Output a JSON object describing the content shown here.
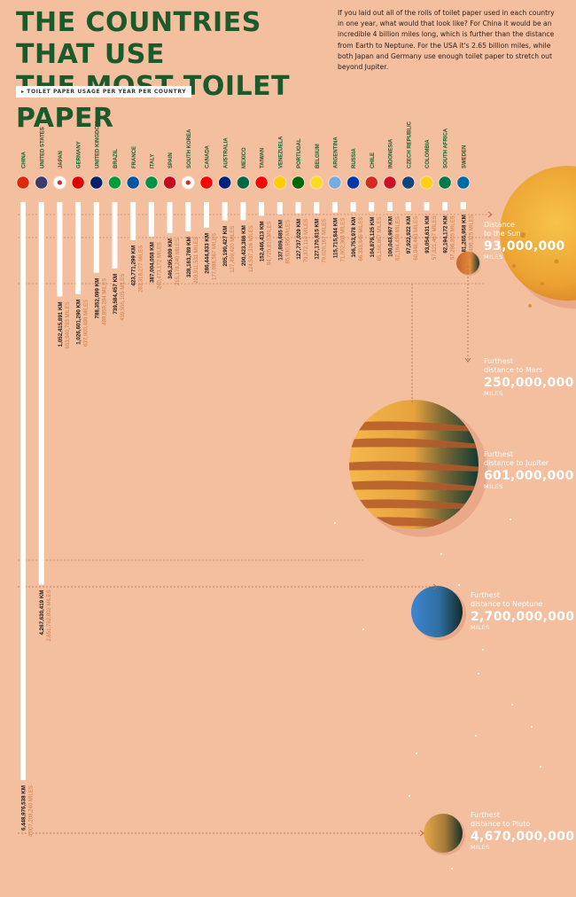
{
  "header": {
    "title_line1": "THE COUNTRIES THAT USE",
    "title_line2": "THE MOST TOILET PAPER",
    "intro": "If you laid out all of the rolls of toilet paper used in each country in one year, what would that look like? For China it would be an incredible 4 billion miles long, which is further than the distance from Earth to Neptune. For the USA it's 2.65 billion miles, while both Japan and Germany use enough toilet paper to stretch out beyond Jupiter.",
    "legend": "▸ TOILET PAPER USAGE PER YEAR PER COUNTRY"
  },
  "colors": {
    "background": "#f3bf9f",
    "title": "#1c5a2c",
    "km_text": "#1e1a18",
    "miles_text": "#d07a44",
    "bar": "#ffffff",
    "dotted": "#c9886a"
  },
  "chart_data": {
    "type": "bar",
    "orientation": "vertical-downward",
    "title": "Toilet paper usage per year per country",
    "unit_primary": "KM",
    "unit_secondary": "MILES",
    "ylim_miles": [
      0,
      4670000000
    ],
    "countries": [
      {
        "name": "CHINA",
        "km": "6,448,976,538 KM",
        "miles": "4,007,208,240 MILES",
        "miles_value": 4007208240,
        "flag": "china-flag-icon",
        "color": "#de2910"
      },
      {
        "name": "UNITED STATES",
        "km": "4,267,630,419 KM",
        "miles": "2,651,782,802 MILES",
        "miles_value": 2651782802,
        "flag": "usa-flag-icon",
        "color": "#3c3b6e"
      },
      {
        "name": "JAPAN",
        "km": "1,052,415,891 KM",
        "miles": "653,940,793 MILES",
        "miles_value": 653940793,
        "flag": "japan-flag-icon",
        "color": "#ffffff"
      },
      {
        "name": "GERMANY",
        "km": "1,026,601,290 KM",
        "miles": "637,900,486 MILES",
        "miles_value": 637900486,
        "flag": "germany-flag-icon",
        "color": "#dd0000"
      },
      {
        "name": "UNITED KINGDOM",
        "km": "788,352,099 KM",
        "miles": "489,859,284 MILES",
        "miles_value": 489859284,
        "flag": "uk-flag-icon",
        "color": "#012169"
      },
      {
        "name": "BRAZIL",
        "km": "739,584,457 KM",
        "miles": "459,555,105 MILES",
        "miles_value": 459555105,
        "flag": "brazil-flag-icon",
        "color": "#009c3b"
      },
      {
        "name": "FRANCE",
        "km": "423,771,299 KM",
        "miles": "263,318,277 MILES",
        "miles_value": 263318277,
        "flag": "france-flag-icon",
        "color": "#0055a4"
      },
      {
        "name": "ITALY",
        "km": "387,004,058 KM",
        "miles": "240,473,172 MILES",
        "miles_value": 240473172,
        "flag": "italy-flag-icon",
        "color": "#009246"
      },
      {
        "name": "SPAIN",
        "km": "346,295,809 KM",
        "miles": "215,178,240 MILES",
        "miles_value": 215178240,
        "flag": "spain-flag-icon",
        "color": "#c60b1e"
      },
      {
        "name": "SOUTH KOREA",
        "km": "328,163,789 KM",
        "miles": "203,911,531 MILES",
        "miles_value": 203911531,
        "flag": "south-korea-flag-icon",
        "color": "#ffffff"
      },
      {
        "name": "CANADA",
        "km": "286,444,833 KM",
        "miles": "177,988,567 MILES",
        "miles_value": 177988567,
        "flag": "canada-flag-icon",
        "color": "#ff0000"
      },
      {
        "name": "AUSTRALIA",
        "km": "205,190,427 KM",
        "miles": "127,499,420 MILES",
        "miles_value": 127499420,
        "flag": "australia-flag-icon",
        "color": "#00247d"
      },
      {
        "name": "MEXICO",
        "km": "200,423,386 KM",
        "miles": "124,537,316 MILES",
        "miles_value": 124537316,
        "flag": "mexico-flag-icon",
        "color": "#006847"
      },
      {
        "name": "TAIWAN",
        "km": "152,446,413 KM",
        "miles": "94,725,810 MILES",
        "miles_value": 94725810,
        "flag": "taiwan-flag-icon",
        "color": "#fe0000"
      },
      {
        "name": "VENEZUELA",
        "km": "137,809,685 KM",
        "miles": "85,630,956 MILES",
        "miles_value": 85630956,
        "flag": "venezuela-flag-icon",
        "color": "#ffcc00"
      },
      {
        "name": "PORTUGAL",
        "km": "127,737,029 KM",
        "miles": "79,372,110 MILES",
        "miles_value": 79372110,
        "flag": "portugal-flag-icon",
        "color": "#006600"
      },
      {
        "name": "BELGIUM",
        "km": "127,170,815 KM",
        "miles": "79,020,167 MILES",
        "miles_value": 79020167,
        "flag": "belgium-flag-icon",
        "color": "#fdda24"
      },
      {
        "name": "ARGENTINA",
        "km": "115,715,844 KM",
        "miles": "71,902,368 MILES",
        "miles_value": 71902368,
        "flag": "argentina-flag-icon",
        "color": "#74acdf"
      },
      {
        "name": "RUSSIA",
        "km": "106,753,978 KM",
        "miles": "66,333,846 MILES",
        "miles_value": 66333846,
        "flag": "russia-flag-icon",
        "color": "#0039a6"
      },
      {
        "name": "CHILE",
        "km": "104,879,125 KM",
        "miles": "65,168,867 MILES",
        "miles_value": 65168867,
        "flag": "chile-flag-icon",
        "color": "#d52b1e"
      },
      {
        "name": "INDONESIA",
        "km": "100,043,997 KM",
        "miles": "62,164,458 MILES",
        "miles_value": 62164458,
        "flag": "indonesia-flag-icon",
        "color": "#ce1126"
      },
      {
        "name": "CZECH REPUBLIC",
        "km": "97,922,922 KM",
        "miles": "60,846,463 MILES",
        "miles_value": 60846463,
        "flag": "czech-flag-icon",
        "color": "#11457e"
      },
      {
        "name": "COLOMBIA",
        "km": "93,054,631 KM",
        "miles": "57,821,467 MILES",
        "miles_value": 57821467,
        "flag": "colombia-flag-icon",
        "color": "#fcd116"
      },
      {
        "name": "SOUTH AFRICA",
        "km": "92,194,172 KM",
        "miles": "57,286,805 MILES",
        "miles_value": 57286805,
        "flag": "south-africa-flag-icon",
        "color": "#007a4d"
      },
      {
        "name": "SWEDEN",
        "km": "81,265,958 KM",
        "miles": "50,496,325 MILES",
        "miles_value": 50496325,
        "flag": "sweden-flag-icon",
        "color": "#006aa7"
      }
    ],
    "annotations": [
      {
        "label_line1": "Distance",
        "label_line2": "to the Sun",
        "value": "93,000,000",
        "unit": "MILES",
        "miles_value": 93000000,
        "body": "sun"
      },
      {
        "label_line1": "Furthest",
        "label_line2": "distance to Mars",
        "value": "250,000,000",
        "unit": "MILES",
        "miles_value": 250000000,
        "body": "mars"
      },
      {
        "label_line1": "Furthest",
        "label_line2": "distance to Jupiter",
        "value": "601,000,000",
        "unit": "MILES",
        "miles_value": 601000000,
        "body": "jupiter"
      },
      {
        "label_line1": "Furthest",
        "label_line2": "distance to Neptune",
        "value": "2,700,000,000",
        "unit": "MILES",
        "miles_value": 2700000000,
        "body": "neptune"
      },
      {
        "label_line1": "Furthest",
        "label_line2": "distance to Pluto",
        "value": "4,670,000,000",
        "unit": "MILES",
        "miles_value": 4670000000,
        "body": "pluto"
      }
    ]
  }
}
